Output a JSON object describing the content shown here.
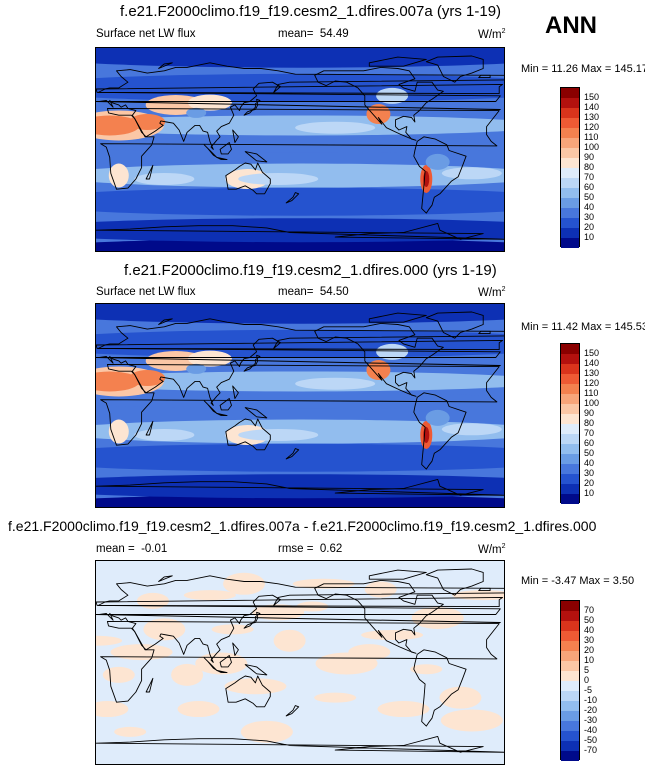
{
  "header": {
    "season": "ANN"
  },
  "panels": [
    {
      "title": "f.e21.F2000climo.f19_f19.cesm2_1.dfires.007a (yrs 1-19)",
      "variable": "Surface net LW flux",
      "mean_label": "mean=",
      "mean_value": "54.49",
      "units": "W/m",
      "units_exp": "2",
      "minmax": "Min = 11.26 Max = 145.17"
    },
    {
      "title": "f.e21.F2000climo.f19_f19.cesm2_1.dfires.000 (yrs 1-19)",
      "variable": "Surface net LW flux",
      "mean_label": "mean=",
      "mean_value": "54.50",
      "units": "W/m",
      "units_exp": "2",
      "minmax": "Min = 11.42 Max = 145.53"
    },
    {
      "title": "f.e21.F2000climo.f19_f19.cesm2_1.dfires.007a - f.e21.F2000climo.f19_f19.cesm2_1.dfires.000",
      "mean_label": "mean =",
      "mean_value": "-0.01",
      "rmse_label": "rmse =",
      "rmse_value": "0.62",
      "units": "W/m",
      "units_exp": "2",
      "minmax": "Min = -3.47 Max =  3.50"
    }
  ],
  "chart_data": [
    {
      "type": "heatmap",
      "title": "f.e21.F2000climo.f19_f19.cesm2_1.dfires.007a (yrs 1-19)",
      "variable": "Surface net LW flux",
      "units": "W/m2",
      "mean": 54.49,
      "min": 11.26,
      "max": 145.17,
      "colorbar_levels": [
        150,
        140,
        130,
        120,
        110,
        100,
        90,
        80,
        70,
        60,
        50,
        40,
        30,
        20,
        10
      ],
      "colorbar_colors": [
        "#8a0000",
        "#b3110e",
        "#d9341c",
        "#ee5a34",
        "#f4814f",
        "#f8a57a",
        "#fbc7a6",
        "#fde5d2",
        "#dfecfb",
        "#bcd7f6",
        "#92bdee",
        "#6a9ce4",
        "#4877dc",
        "#2553cf",
        "#0d30b4",
        "#000a8a"
      ]
    },
    {
      "type": "heatmap",
      "title": "f.e21.F2000climo.f19_f19.cesm2_1.dfires.000 (yrs 1-19)",
      "variable": "Surface net LW flux",
      "units": "W/m2",
      "mean": 54.5,
      "min": 11.42,
      "max": 145.53,
      "colorbar_levels": [
        150,
        140,
        130,
        120,
        110,
        100,
        90,
        80,
        70,
        60,
        50,
        40,
        30,
        20,
        10
      ],
      "colorbar_colors": [
        "#8a0000",
        "#b3110e",
        "#d9341c",
        "#ee5a34",
        "#f4814f",
        "#f8a57a",
        "#fbc7a6",
        "#fde5d2",
        "#dfecfb",
        "#bcd7f6",
        "#92bdee",
        "#6a9ce4",
        "#4877dc",
        "#2553cf",
        "#0d30b4",
        "#000a8a"
      ]
    },
    {
      "type": "heatmap",
      "title": "f.e21.F2000climo.f19_f19.cesm2_1.dfires.007a - f.e21.F2000climo.f19_f19.cesm2_1.dfires.000",
      "units": "W/m2",
      "mean": -0.01,
      "rmse": 0.62,
      "min": -3.47,
      "max": 3.5,
      "colorbar_levels": [
        70,
        50,
        40,
        30,
        20,
        10,
        5,
        0,
        -5,
        -10,
        -20,
        -30,
        -40,
        -50,
        -70
      ],
      "colorbar_colors": [
        "#8a0000",
        "#b3110e",
        "#d9341c",
        "#ee5a34",
        "#f4814f",
        "#f8a57a",
        "#fbc7a6",
        "#fde5d2",
        "#dfecfb",
        "#bcd7f6",
        "#92bdee",
        "#6a9ce4",
        "#4877dc",
        "#2553cf",
        "#0d30b4",
        "#000a8a"
      ]
    }
  ]
}
